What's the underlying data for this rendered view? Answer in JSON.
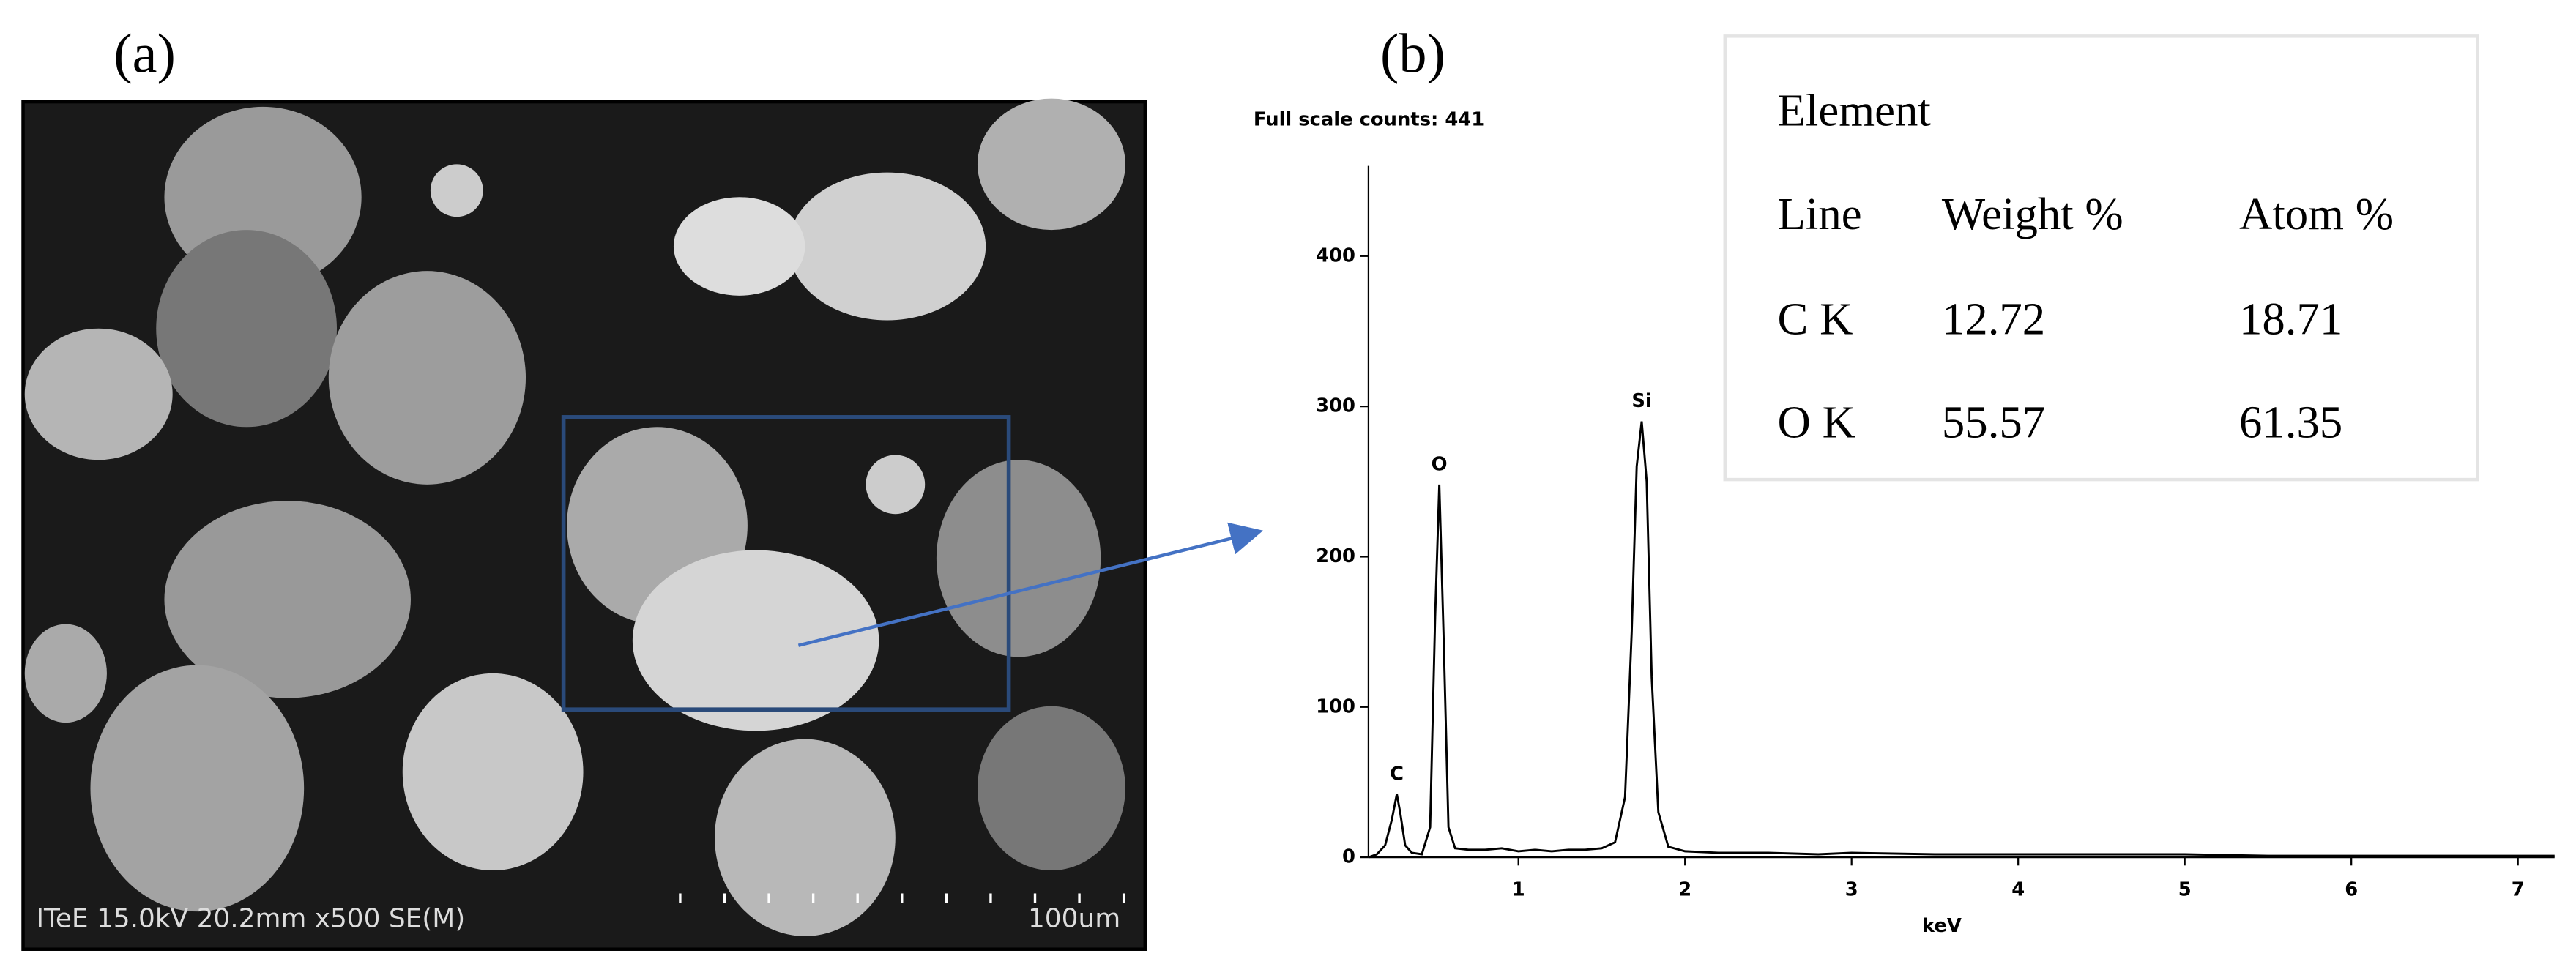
{
  "panels": {
    "a": "(a)",
    "b": "(b)"
  },
  "sem_image": {
    "info": "ITeE 15.0kV 20.2mm x500 SE(M)",
    "scale_bar": "100um"
  },
  "chart_data": {
    "type": "line",
    "title": "Full scale counts: 441",
    "x_label": "keV",
    "x": [
      0.1,
      0.15,
      0.2,
      0.24,
      0.27,
      0.29,
      0.32,
      0.36,
      0.42,
      0.47,
      0.5,
      0.525,
      0.55,
      0.58,
      0.62,
      0.7,
      0.8,
      0.9,
      1.0,
      1.1,
      1.2,
      1.3,
      1.4,
      1.5,
      1.58,
      1.64,
      1.68,
      1.71,
      1.74,
      1.77,
      1.8,
      1.84,
      1.9,
      2.0,
      2.2,
      2.5,
      2.8,
      3.0,
      3.5,
      4.0,
      4.5,
      5.0,
      5.5,
      6.0,
      6.5,
      7.0,
      7.22
    ],
    "series": [
      {
        "color": "#000000",
        "values": [
          0,
          2,
          8,
          25,
          42,
          30,
          8,
          3,
          2,
          20,
          160,
          248,
          150,
          20,
          6,
          5,
          5,
          6,
          4,
          5,
          4,
          5,
          5,
          6,
          10,
          40,
          150,
          260,
          290,
          250,
          120,
          30,
          7,
          4,
          3,
          3,
          2,
          3,
          2,
          2,
          2,
          2,
          1,
          1,
          1,
          1,
          1
        ]
      }
    ],
    "annotations": [
      {
        "text": "C",
        "x": 0.27,
        "y": 42
      },
      {
        "text": "O",
        "x": 0.525,
        "y": 248
      },
      {
        "text": "Si",
        "x": 1.74,
        "y": 290
      }
    ],
    "xlim": [
      0.1,
      7.22
    ],
    "xticks": [
      1,
      2,
      3,
      4,
      5,
      6,
      7
    ],
    "ylim": [
      0,
      460
    ],
    "yticks": [
      0,
      100,
      200,
      300,
      400
    ]
  },
  "table": {
    "title": "Element",
    "header": [
      "Line",
      "Weight %",
      "Atom %"
    ],
    "rows": [
      [
        "C K",
        "12.72",
        "18.71"
      ],
      [
        "O K",
        "55.57",
        "61.35"
      ]
    ]
  }
}
